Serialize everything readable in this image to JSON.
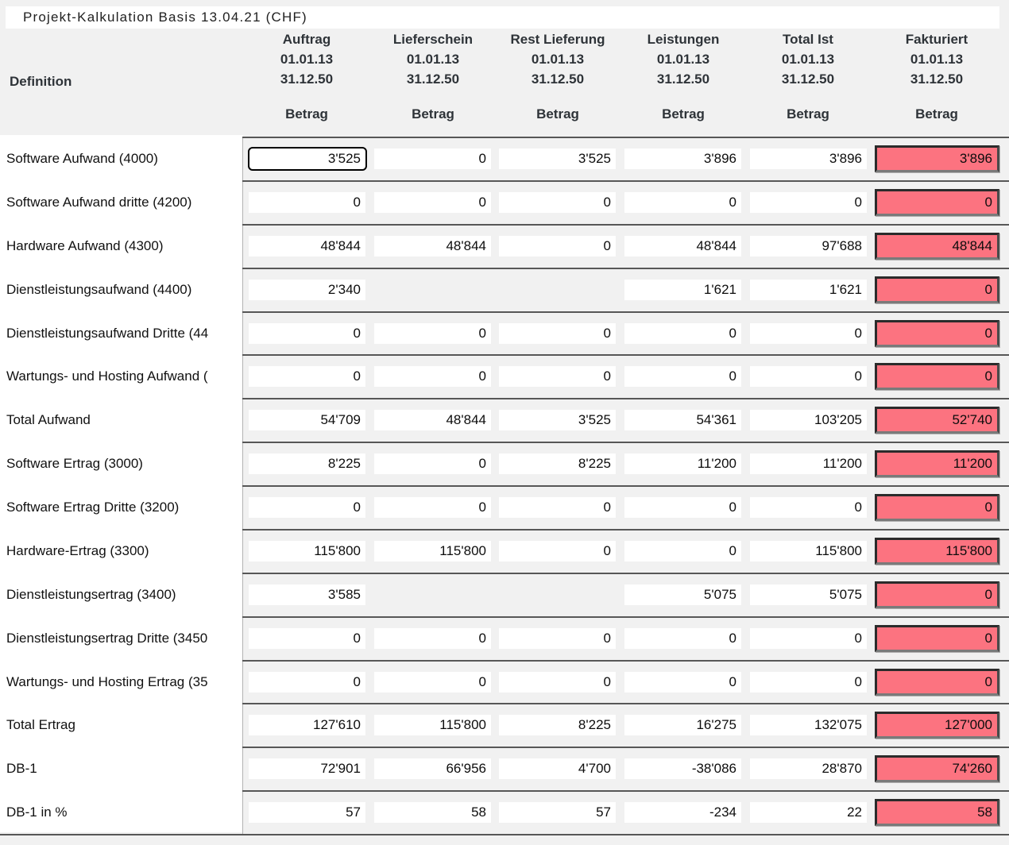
{
  "title": "Projekt-Kalkulation Basis 13.04.21 (CHF)",
  "header": {
    "definition_label": "Definition",
    "amount_label": "Betrag",
    "period_from": "01.01.13",
    "period_to": "31.12.50",
    "columns": [
      {
        "title": "Auftrag",
        "from": "01.01.13",
        "to": "31.12.50",
        "measure": "Betrag"
      },
      {
        "title": "Lieferschein",
        "from": "01.01.13",
        "to": "31.12.50",
        "measure": "Betrag"
      },
      {
        "title": "Rest Lieferung",
        "from": "01.01.13",
        "to": "31.12.50",
        "measure": "Betrag"
      },
      {
        "title": "Leistungen",
        "from": "01.01.13",
        "to": "31.12.50",
        "measure": "Betrag"
      },
      {
        "title": "Total Ist",
        "from": "01.01.13",
        "to": "31.12.50",
        "measure": "Betrag"
      },
      {
        "title": "Fakturiert",
        "from": "01.01.13",
        "to": "31.12.50",
        "measure": "Betrag"
      }
    ]
  },
  "colors": {
    "highlight_cell": "#FC7380",
    "row_line": "#575757",
    "focus_border": "#000000",
    "page_background": "#f1f1f1"
  },
  "rows": [
    {
      "label": "Software Aufwand (4000)",
      "values": [
        "3'525",
        "0",
        "3'525",
        "3'896",
        "3'896",
        "3'896"
      ],
      "focused_col": 0
    },
    {
      "label": "Software Aufwand dritte (4200)",
      "values": [
        "0",
        "0",
        "0",
        "0",
        "0",
        "0"
      ]
    },
    {
      "label": "Hardware Aufwand (4300)",
      "values": [
        "48'844",
        "48'844",
        "0",
        "48'844",
        "97'688",
        "48'844"
      ]
    },
    {
      "label": "Dienstleistungsaufwand (4400)",
      "values": [
        "2'340",
        null,
        null,
        "1'621",
        "1'621",
        "0"
      ]
    },
    {
      "label": "Dienstleistungsaufwand Dritte (44",
      "values": [
        "0",
        "0",
        "0",
        "0",
        "0",
        "0"
      ]
    },
    {
      "label": "Wartungs- und Hosting Aufwand (",
      "values": [
        "0",
        "0",
        "0",
        "0",
        "0",
        "0"
      ]
    },
    {
      "label": "Total Aufwand",
      "values": [
        "54'709",
        "48'844",
        "3'525",
        "54'361",
        "103'205",
        "52'740"
      ]
    },
    {
      "label": "Software Ertrag (3000)",
      "values": [
        "8'225",
        "0",
        "8'225",
        "11'200",
        "11'200",
        "11'200"
      ]
    },
    {
      "label": "Software Ertrag Dritte (3200)",
      "values": [
        "0",
        "0",
        "0",
        "0",
        "0",
        "0"
      ]
    },
    {
      "label": "Hardware-Ertrag (3300)",
      "values": [
        "115'800",
        "115'800",
        "0",
        "0",
        "115'800",
        "115'800"
      ]
    },
    {
      "label": "Dienstleistungsertrag (3400)",
      "values": [
        "3'585",
        null,
        null,
        "5'075",
        "5'075",
        "0"
      ]
    },
    {
      "label": "Dienstleistungsertrag Dritte (3450",
      "values": [
        "0",
        "0",
        "0",
        "0",
        "0",
        "0"
      ]
    },
    {
      "label": "Wartungs- und Hosting Ertrag (35",
      "values": [
        "0",
        "0",
        "0",
        "0",
        "0",
        "0"
      ]
    },
    {
      "label": "Total Ertrag",
      "values": [
        "127'610",
        "115'800",
        "8'225",
        "16'275",
        "132'075",
        "127'000"
      ]
    },
    {
      "label": "DB-1",
      "values": [
        "72'901",
        "66'956",
        "4'700",
        "-38'086",
        "28'870",
        "74'260"
      ]
    },
    {
      "label": "DB-1 in %",
      "values": [
        "57",
        "58",
        "57",
        "-234",
        "22",
        "58"
      ]
    }
  ]
}
